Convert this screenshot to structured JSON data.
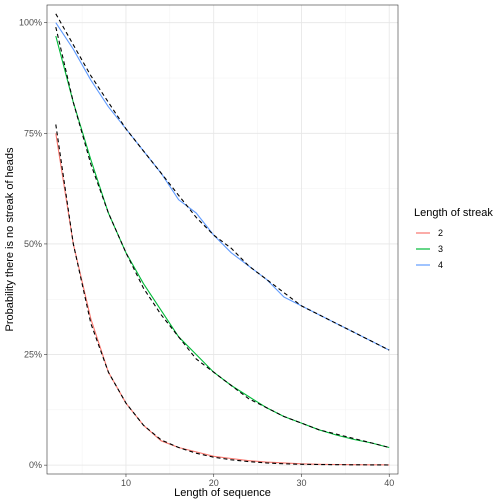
{
  "chart_data": {
    "type": "line",
    "xlabel": "Length of sequence",
    "ylabel": "Probability there is no streak of heads",
    "xlim": [
      1,
      41
    ],
    "ylim": [
      -0.02,
      1.04
    ],
    "x_ticks": [
      10,
      20,
      30,
      40
    ],
    "y_ticks": [
      {
        "value": 0,
        "label": "0%"
      },
      {
        "value": 0.25,
        "label": "25%"
      },
      {
        "value": 0.5,
        "label": "50%"
      },
      {
        "value": 0.75,
        "label": "75%"
      },
      {
        "value": 1.0,
        "label": "100%"
      }
    ],
    "grid": true,
    "legend": {
      "title": "Length of streak",
      "position": "right"
    },
    "series": [
      {
        "name": "2",
        "color": "#F8766D",
        "x": [
          2,
          4,
          6,
          8,
          10,
          12,
          14,
          16,
          18,
          20,
          22,
          24,
          26,
          28,
          30,
          32,
          34,
          36,
          38,
          40
        ],
        "y": [
          0.75,
          0.5,
          0.33,
          0.21,
          0.14,
          0.09,
          0.055,
          0.04,
          0.03,
          0.02,
          0.015,
          0.01,
          0.007,
          0.005,
          0.003,
          0.002,
          0.0015,
          0.001,
          0.0007,
          0.0005
        ]
      },
      {
        "name": "3",
        "color": "#00BA38",
        "x": [
          2,
          4,
          6,
          8,
          10,
          12,
          14,
          16,
          18,
          20,
          22,
          24,
          26,
          28,
          30,
          32,
          34,
          36,
          38,
          40
        ],
        "y": [
          0.97,
          0.82,
          0.69,
          0.57,
          0.48,
          0.41,
          0.35,
          0.29,
          0.25,
          0.21,
          0.18,
          0.155,
          0.13,
          0.11,
          0.095,
          0.08,
          0.068,
          0.058,
          0.05,
          0.04
        ]
      },
      {
        "name": "4",
        "color": "#619CFF",
        "x": [
          2,
          4,
          6,
          8,
          10,
          12,
          14,
          16,
          18,
          20,
          22,
          24,
          26,
          28,
          30,
          32,
          34,
          36,
          38,
          40
        ],
        "y": [
          1.0,
          0.94,
          0.87,
          0.81,
          0.76,
          0.71,
          0.66,
          0.6,
          0.57,
          0.52,
          0.48,
          0.45,
          0.42,
          0.38,
          0.36,
          0.34,
          0.32,
          0.3,
          0.28,
          0.26
        ]
      }
    ],
    "fit_lines": [
      {
        "style": "dashed",
        "color": "#000000",
        "x": [
          2,
          4,
          6,
          8,
          10,
          12,
          14,
          16,
          18,
          20,
          22,
          24,
          26,
          28,
          30,
          32,
          34,
          36,
          38,
          40
        ],
        "y": [
          0.77,
          0.5,
          0.32,
          0.21,
          0.14,
          0.09,
          0.057,
          0.04,
          0.027,
          0.018,
          0.012,
          0.008,
          0.005,
          0.003,
          0.002,
          0.0015,
          0.001,
          0.0007,
          0.0005,
          0.0003
        ]
      },
      {
        "style": "dashed",
        "color": "#000000",
        "x": [
          2,
          4,
          6,
          8,
          10,
          12,
          14,
          16,
          18,
          20,
          22,
          24,
          26,
          28,
          30,
          32,
          34,
          36,
          38,
          40
        ],
        "y": [
          0.99,
          0.82,
          0.68,
          0.57,
          0.48,
          0.4,
          0.34,
          0.29,
          0.24,
          0.21,
          0.18,
          0.15,
          0.13,
          0.11,
          0.095,
          0.08,
          0.07,
          0.06,
          0.05,
          0.04
        ]
      },
      {
        "style": "dashed",
        "color": "#000000",
        "x": [
          2,
          4,
          6,
          8,
          10,
          12,
          14,
          16,
          18,
          20,
          22,
          24,
          26,
          28,
          30,
          32,
          34,
          36,
          38,
          40
        ],
        "y": [
          1.02,
          0.95,
          0.88,
          0.82,
          0.76,
          0.71,
          0.66,
          0.61,
          0.56,
          0.52,
          0.49,
          0.45,
          0.42,
          0.39,
          0.36,
          0.34,
          0.32,
          0.3,
          0.28,
          0.26
        ]
      }
    ]
  }
}
